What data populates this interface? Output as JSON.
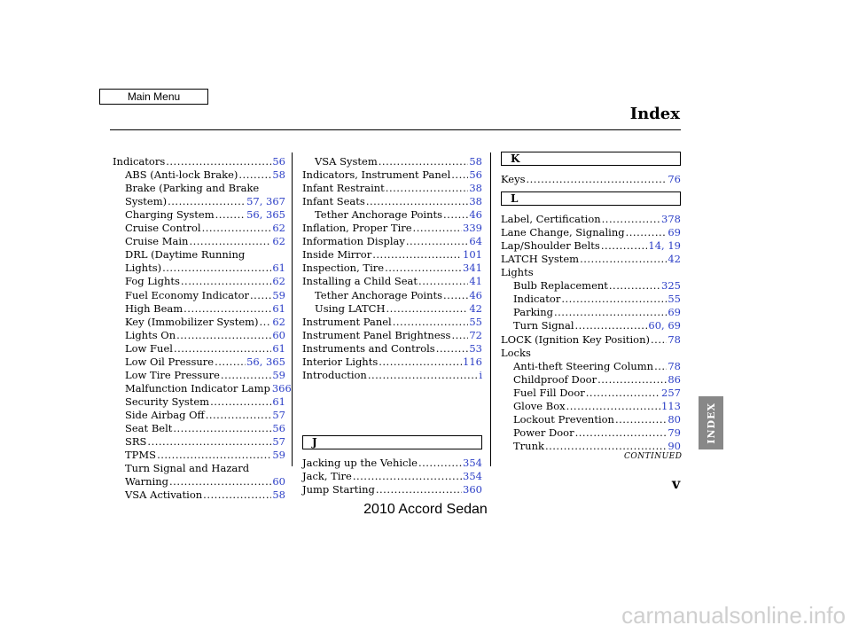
{
  "header": {
    "main_menu": "Main Menu",
    "title": "Index"
  },
  "col1": [
    {
      "t": "Indicators",
      "p": [
        "56"
      ],
      "i": 0
    },
    {
      "t": "ABS (Anti-lock Brake)",
      "p": [
        "58"
      ],
      "i": 1
    },
    {
      "t": "Brake (Parking and Brake",
      "p": [],
      "i": 1
    },
    {
      "t": "System)",
      "p": [
        "57",
        "367"
      ],
      "i": 2
    },
    {
      "t": "Charging System",
      "p": [
        "56",
        "365"
      ],
      "i": 1
    },
    {
      "t": "Cruise Control",
      "p": [
        "62"
      ],
      "i": 1
    },
    {
      "t": "Cruise Main",
      "p": [
        "62"
      ],
      "i": 1
    },
    {
      "t": "DRL (Daytime Running",
      "p": [],
      "i": 1
    },
    {
      "t": "Lights)",
      "p": [
        "61"
      ],
      "i": 2
    },
    {
      "t": "Fog Lights",
      "p": [
        "62"
      ],
      "i": 1
    },
    {
      "t": "Fuel Economy Indicator",
      "p": [
        "59"
      ],
      "i": 1
    },
    {
      "t": "High Beam",
      "p": [
        "61"
      ],
      "i": 1
    },
    {
      "t": "Key (Immobilizer System)",
      "p": [
        "62"
      ],
      "i": 1
    },
    {
      "t": "Lights On",
      "p": [
        "60"
      ],
      "i": 1
    },
    {
      "t": "Low Fuel",
      "p": [
        "61"
      ],
      "i": 1
    },
    {
      "t": "Low Oil Pressure",
      "p": [
        "56",
        "365"
      ],
      "i": 1
    },
    {
      "t": "Low Tire Pressure",
      "p": [
        "59"
      ],
      "i": 1
    },
    {
      "t": "Malfunction Indicator Lamp",
      "p": [
        "366"
      ],
      "i": 1
    },
    {
      "t": "Security System",
      "p": [
        "61"
      ],
      "i": 1
    },
    {
      "t": "Side Airbag Off",
      "p": [
        "57"
      ],
      "i": 1
    },
    {
      "t": "Seat Belt",
      "p": [
        "56"
      ],
      "i": 1
    },
    {
      "t": "SRS",
      "p": [
        "57"
      ],
      "i": 1
    },
    {
      "t": "TPMS",
      "p": [
        "59"
      ],
      "i": 1
    },
    {
      "t": "Turn Signal and Hazard",
      "p": [],
      "i": 1
    },
    {
      "t": "Warning",
      "p": [
        "60"
      ],
      "i": 2
    },
    {
      "t": "VSA Activation",
      "p": [
        "58"
      ],
      "i": 1
    }
  ],
  "col2": [
    {
      "t": "VSA System",
      "p": [
        "58"
      ],
      "i": 1
    },
    {
      "t": "Indicators, Instrument Panel",
      "p": [
        "56"
      ],
      "i": 0
    },
    {
      "t": "Infant Restraint",
      "p": [
        "38"
      ],
      "i": 0
    },
    {
      "t": "Infant Seats",
      "p": [
        "38"
      ],
      "i": 0
    },
    {
      "t": "Tether Anchorage Points",
      "p": [
        "46"
      ],
      "i": 1
    },
    {
      "t": "Inflation, Proper Tire",
      "p": [
        "339"
      ],
      "i": 0
    },
    {
      "t": "Information Display",
      "p": [
        "64"
      ],
      "i": 0
    },
    {
      "t": "Inside Mirror",
      "p": [
        "101"
      ],
      "i": 0
    },
    {
      "t": "Inspection, Tire",
      "p": [
        "341"
      ],
      "i": 0
    },
    {
      "t": "Installing a Child Seat",
      "p": [
        "41"
      ],
      "i": 0
    },
    {
      "t": "Tether Anchorage Points",
      "p": [
        "46"
      ],
      "i": 1
    },
    {
      "t": "Using LATCH",
      "p": [
        "42"
      ],
      "i": 1
    },
    {
      "t": "Instrument Panel",
      "p": [
        "55"
      ],
      "i": 0
    },
    {
      "t": "Instrument Panel Brightness",
      "p": [
        "72"
      ],
      "i": 0
    },
    {
      "t": "Instruments and Controls",
      "p": [
        "53"
      ],
      "i": 0
    },
    {
      "t": "Interior Lights",
      "p": [
        "116"
      ],
      "i": 0
    },
    {
      "t": "Introduction",
      "p": [
        "i"
      ],
      "i": 0
    }
  ],
  "col2_j_heading": "J",
  "col2_j": [
    {
      "t": "Jacking up the Vehicle",
      "p": [
        "354"
      ],
      "i": 0
    },
    {
      "t": "Jack, Tire",
      "p": [
        "354"
      ],
      "i": 0
    },
    {
      "t": "Jump Starting",
      "p": [
        "360"
      ],
      "i": 0
    }
  ],
  "col3_k_heading": "K",
  "col3_k": [
    {
      "t": "Keys",
      "p": [
        "76"
      ],
      "i": 0
    }
  ],
  "col3_l_heading": "L",
  "col3_l": [
    {
      "t": "Label, Certification",
      "p": [
        "378"
      ],
      "i": 0
    },
    {
      "t": "Lane Change, Signaling",
      "p": [
        "69"
      ],
      "i": 0
    },
    {
      "t": "Lap/Shoulder Belts",
      "p": [
        "14",
        "19"
      ],
      "i": 0
    },
    {
      "t": "LATCH System",
      "p": [
        "42"
      ],
      "i": 0
    },
    {
      "t": "Lights",
      "p": [],
      "i": 0
    },
    {
      "t": "Bulb Replacement",
      "p": [
        "325"
      ],
      "i": 1
    },
    {
      "t": "Indicator",
      "p": [
        "55"
      ],
      "i": 1
    },
    {
      "t": "Parking",
      "p": [
        "69"
      ],
      "i": 1
    },
    {
      "t": "Turn Signal",
      "p": [
        "60",
        "69"
      ],
      "i": 1
    },
    {
      "t": "LOCK (Ignition Key Position)",
      "p": [
        "78"
      ],
      "i": 0
    },
    {
      "t": "Locks",
      "p": [],
      "i": 0
    },
    {
      "t": "Anti-theft Steering Column",
      "p": [
        "78"
      ],
      "i": 1
    },
    {
      "t": "Childproof Door",
      "p": [
        "86"
      ],
      "i": 1
    },
    {
      "t": "Fuel Fill Door",
      "p": [
        "257"
      ],
      "i": 1
    },
    {
      "t": "Glove Box",
      "p": [
        "113"
      ],
      "i": 1
    },
    {
      "t": "Lockout Prevention",
      "p": [
        "80"
      ],
      "i": 1
    },
    {
      "t": "Power Door",
      "p": [
        "79"
      ],
      "i": 1
    },
    {
      "t": "Trunk",
      "p": [
        "90"
      ],
      "i": 1
    }
  ],
  "continued": "CONTINUED",
  "side_tab": "INDEX",
  "page_number": "v",
  "footer": "2010 Accord Sedan",
  "watermark": "carmanualsonline.info",
  "colors": {
    "link": "#2b3ec6",
    "side_tab": "#888888"
  }
}
